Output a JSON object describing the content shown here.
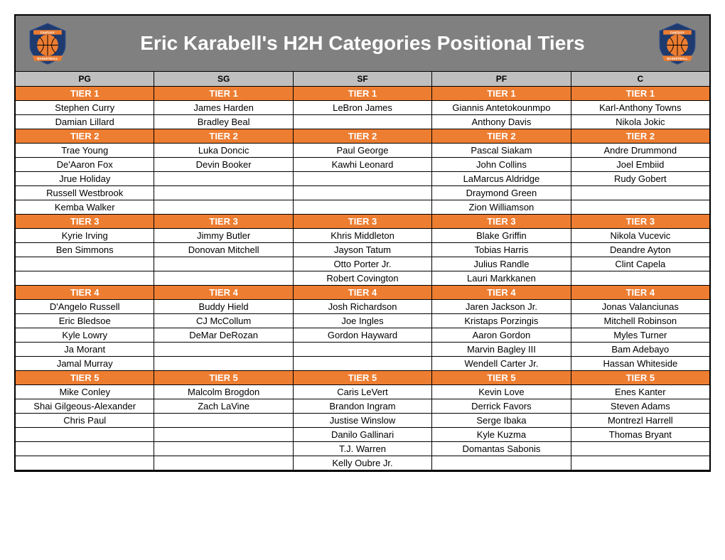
{
  "title": "Eric Karabell's H2H Categories Positional Tiers",
  "colors": {
    "header_bg": "#808080",
    "header_text": "#ffffff",
    "pos_header_bg": "#bfbfbf",
    "tier_bg": "#ed7d31",
    "tier_text": "#ffffff",
    "border": "#000000",
    "logo_inner": "#ed7d31",
    "logo_outer": "#1e3a6e"
  },
  "positions": [
    "PG",
    "SG",
    "SF",
    "PF",
    "C"
  ],
  "rows": [
    {
      "type": "tier",
      "cells": [
        "TIER 1",
        "TIER 1",
        "TIER 1",
        "TIER 1",
        "TIER 1"
      ]
    },
    {
      "type": "player",
      "cells": [
        "Stephen Curry",
        "James Harden",
        "LeBron James",
        "Giannis Antetokounmpo",
        "Karl-Anthony Towns"
      ]
    },
    {
      "type": "player",
      "cells": [
        "Damian Lillard",
        "Bradley Beal",
        "",
        "Anthony Davis",
        "Nikola Jokic"
      ]
    },
    {
      "type": "tier",
      "cells": [
        "TIER 2",
        "TIER 2",
        "TIER 2",
        "TIER 2",
        "TIER 2"
      ]
    },
    {
      "type": "player",
      "cells": [
        "Trae Young",
        "Luka Doncic",
        "Paul George",
        "Pascal Siakam",
        "Andre Drummond"
      ]
    },
    {
      "type": "player",
      "cells": [
        "De'Aaron Fox",
        "Devin Booker",
        "Kawhi Leonard",
        "John Collins",
        "Joel Embiid"
      ]
    },
    {
      "type": "player",
      "cells": [
        "Jrue Holiday",
        "",
        "",
        "LaMarcus Aldridge",
        "Rudy Gobert"
      ]
    },
    {
      "type": "player",
      "cells": [
        "Russell Westbrook",
        "",
        "",
        "Draymond Green",
        ""
      ]
    },
    {
      "type": "player",
      "cells": [
        "Kemba Walker",
        "",
        "",
        "Zion Williamson",
        ""
      ]
    },
    {
      "type": "tier",
      "cells": [
        "TIER 3",
        "TIER 3",
        "TIER 3",
        "TIER 3",
        "TIER 3"
      ]
    },
    {
      "type": "player",
      "cells": [
        "Kyrie Irving",
        "Jimmy Butler",
        "Khris Middleton",
        "Blake Griffin",
        "Nikola Vucevic"
      ]
    },
    {
      "type": "player",
      "cells": [
        "Ben Simmons",
        "Donovan Mitchell",
        "Jayson Tatum",
        "Tobias Harris",
        "Deandre Ayton"
      ]
    },
    {
      "type": "player",
      "cells": [
        "",
        "",
        "Otto Porter Jr.",
        "Julius Randle",
        "Clint Capela"
      ]
    },
    {
      "type": "player",
      "cells": [
        "",
        "",
        "Robert Covington",
        "Lauri Markkanen",
        ""
      ]
    },
    {
      "type": "tier",
      "cells": [
        "TIER 4",
        "TIER 4",
        "TIER 4",
        "TIER 4",
        "TIER 4"
      ]
    },
    {
      "type": "player",
      "cells": [
        "D'Angelo Russell",
        "Buddy Hield",
        "Josh Richardson",
        "Jaren Jackson Jr.",
        "Jonas Valanciunas"
      ]
    },
    {
      "type": "player",
      "cells": [
        "Eric Bledsoe",
        "CJ McCollum",
        "Joe Ingles",
        "Kristaps Porzingis",
        "Mitchell Robinson"
      ]
    },
    {
      "type": "player",
      "cells": [
        "Kyle Lowry",
        "DeMar DeRozan",
        "Gordon Hayward",
        "Aaron Gordon",
        "Myles Turner"
      ]
    },
    {
      "type": "player",
      "cells": [
        "Ja Morant",
        "",
        "",
        "Marvin Bagley III",
        "Bam Adebayo"
      ]
    },
    {
      "type": "player",
      "cells": [
        "Jamal Murray",
        "",
        "",
        "Wendell Carter Jr.",
        "Hassan Whiteside"
      ]
    },
    {
      "type": "tier",
      "cells": [
        "TIER 5",
        "TIER 5",
        "TIER 5",
        "TIER 5",
        "TIER 5"
      ]
    },
    {
      "type": "player",
      "cells": [
        "Mike Conley",
        "Malcolm Brogdon",
        "Caris LeVert",
        "Kevin Love",
        "Enes Kanter"
      ]
    },
    {
      "type": "player",
      "cells": [
        "Shai Gilgeous-Alexander",
        "Zach LaVine",
        "Brandon Ingram",
        "Derrick Favors",
        "Steven Adams"
      ]
    },
    {
      "type": "player",
      "cells": [
        "Chris Paul",
        "",
        "Justise Winslow",
        "Serge Ibaka",
        "Montrezl Harrell"
      ]
    },
    {
      "type": "player",
      "cells": [
        "",
        "",
        "Danilo Gallinari",
        "Kyle Kuzma",
        "Thomas Bryant"
      ]
    },
    {
      "type": "player",
      "cells": [
        "",
        "",
        "T.J. Warren",
        "Domantas Sabonis",
        ""
      ]
    },
    {
      "type": "player",
      "cells": [
        "",
        "",
        "Kelly Oubre Jr.",
        "",
        ""
      ]
    }
  ],
  "logo_text_top": "FANTASY",
  "logo_text_bottom": "BASKETBALL"
}
